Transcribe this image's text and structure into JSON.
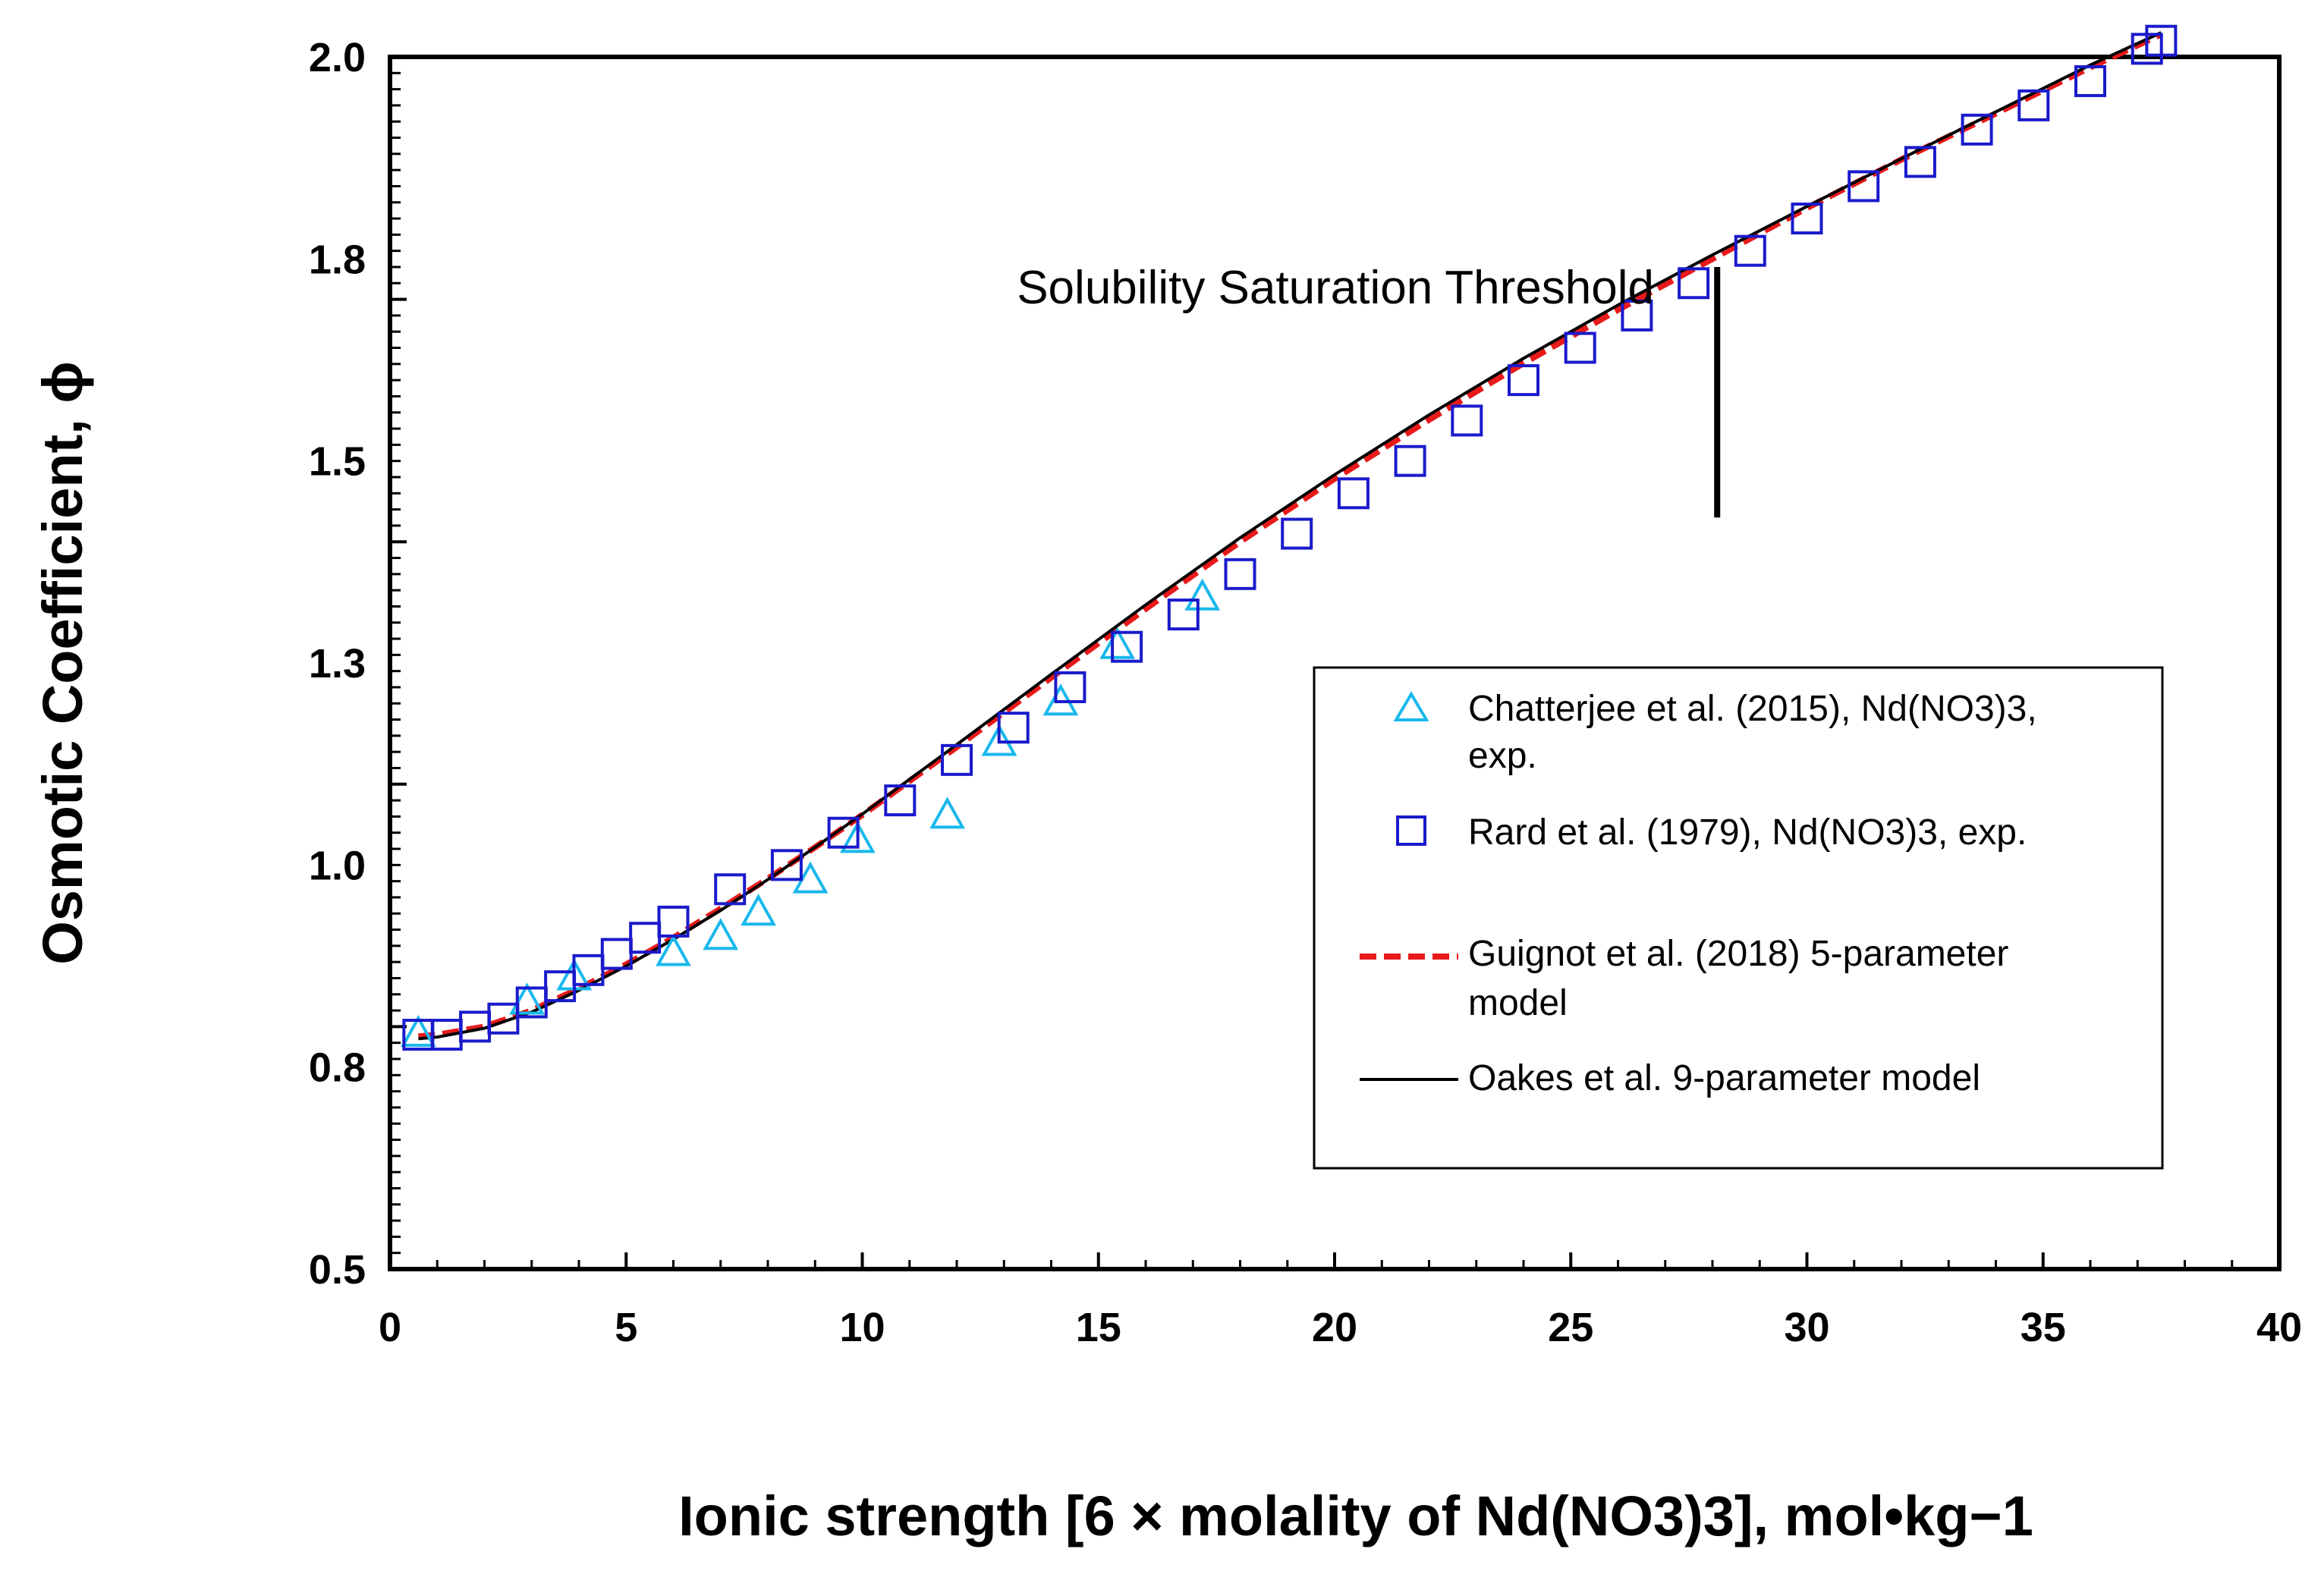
{
  "chart_data": {
    "type": "scatter",
    "title": "",
    "xlabel": "Ionic strength [6 × molality of Nd(NO3)3], mol•kg−1",
    "ylabel": "Osmotic Coefficient, ϕ",
    "xlim": [
      0,
      40
    ],
    "ylim": [
      0.5,
      2.0
    ],
    "x_ticks": [
      "0",
      "5",
      "10",
      "15",
      "20",
      "25",
      "30",
      "35",
      "40"
    ],
    "y_ticks": [
      "0.5",
      "0.8",
      "1.0",
      "1.3",
      "1.5",
      "1.8",
      "2.0"
    ],
    "grid": false,
    "legend_position": "right",
    "annotation": {
      "text": "Solubility Saturation Threshold",
      "x": 28.1,
      "y_range": [
        1.43,
        1.74
      ]
    },
    "series": [
      {
        "name": "Chatterjee et al. (2015),  Nd(NO3)3, exp.",
        "marker": "triangle",
        "color": "#19b8ec",
        "points": [
          [
            0.6,
            0.79
          ],
          [
            2.9,
            0.83
          ],
          [
            3.9,
            0.86
          ],
          [
            6.0,
            0.89
          ],
          [
            7.0,
            0.91
          ],
          [
            7.8,
            0.94
          ],
          [
            8.9,
            0.98
          ],
          [
            9.9,
            1.03
          ],
          [
            11.8,
            1.06
          ],
          [
            12.9,
            1.15
          ],
          [
            14.2,
            1.2
          ],
          [
            15.4,
            1.27
          ],
          [
            17.2,
            1.33
          ]
        ]
      },
      {
        "name": "Rard et al. (1979), Nd(NO3)3, exp.",
        "marker": "square",
        "color": "#1a1acc",
        "points": [
          [
            0.6,
            0.79
          ],
          [
            1.2,
            0.79
          ],
          [
            1.8,
            0.8
          ],
          [
            2.4,
            0.81
          ],
          [
            3.0,
            0.83
          ],
          [
            3.6,
            0.85
          ],
          [
            4.2,
            0.87
          ],
          [
            4.8,
            0.89
          ],
          [
            5.4,
            0.91
          ],
          [
            6.0,
            0.93
          ],
          [
            7.2,
            0.97
          ],
          [
            8.4,
            1.0
          ],
          [
            9.6,
            1.04
          ],
          [
            10.8,
            1.08
          ],
          [
            12.0,
            1.13
          ],
          [
            13.2,
            1.17
          ],
          [
            14.4,
            1.22
          ],
          [
            15.6,
            1.27
          ],
          [
            16.8,
            1.31
          ],
          [
            18.0,
            1.36
          ],
          [
            19.2,
            1.41
          ],
          [
            20.4,
            1.46
          ],
          [
            21.6,
            1.5
          ],
          [
            22.8,
            1.55
          ],
          [
            24.0,
            1.6
          ],
          [
            25.2,
            1.64
          ],
          [
            26.4,
            1.68
          ],
          [
            27.6,
            1.72
          ],
          [
            28.8,
            1.76
          ],
          [
            30.0,
            1.8
          ],
          [
            31.2,
            1.84
          ],
          [
            32.4,
            1.87
          ],
          [
            33.6,
            1.91
          ],
          [
            34.8,
            1.94
          ],
          [
            36.0,
            1.97
          ],
          [
            37.2,
            2.01
          ],
          [
            37.5,
            2.02
          ]
        ]
      },
      {
        "name": "Guignot et al. (2018) 5-parameter model",
        "line_style": "dashed",
        "color": "#e81a1a",
        "points": [
          [
            0.6,
            0.788
          ],
          [
            1,
            0.79
          ],
          [
            2,
            0.8
          ],
          [
            3,
            0.82
          ],
          [
            4,
            0.847
          ],
          [
            5,
            0.877
          ],
          [
            6,
            0.91
          ],
          [
            7,
            0.946
          ],
          [
            8,
            0.983
          ],
          [
            9,
            1.022
          ],
          [
            10,
            1.062
          ],
          [
            12,
            1.146
          ],
          [
            14,
            1.232
          ],
          [
            16,
            1.317
          ],
          [
            18,
            1.4
          ],
          [
            20,
            1.478
          ],
          [
            22,
            1.551
          ],
          [
            24,
            1.621
          ],
          [
            26,
            1.687
          ],
          [
            28,
            1.75
          ],
          [
            30,
            1.813
          ],
          [
            32,
            1.873
          ],
          [
            34,
            1.93
          ],
          [
            36,
            1.987
          ],
          [
            37.5,
            2.028
          ]
        ]
      },
      {
        "name": "Oakes et al. 9-parameter model",
        "line_style": "solid",
        "color": "#000000",
        "points": [
          [
            0.6,
            0.785
          ],
          [
            1,
            0.787
          ],
          [
            2,
            0.798
          ],
          [
            3,
            0.818
          ],
          [
            4,
            0.845
          ],
          [
            5,
            0.875
          ],
          [
            6,
            0.908
          ],
          [
            7,
            0.944
          ],
          [
            8,
            0.982
          ],
          [
            9,
            1.022
          ],
          [
            10,
            1.063
          ],
          [
            12,
            1.149
          ],
          [
            14,
            1.236
          ],
          [
            16,
            1.322
          ],
          [
            18,
            1.405
          ],
          [
            20,
            1.483
          ],
          [
            22,
            1.557
          ],
          [
            24,
            1.627
          ],
          [
            26,
            1.693
          ],
          [
            28,
            1.755
          ],
          [
            30,
            1.815
          ],
          [
            32,
            1.874
          ],
          [
            34,
            1.932
          ],
          [
            36,
            1.99
          ],
          [
            37.5,
            2.03
          ]
        ]
      }
    ]
  },
  "legend": {
    "items": [
      {
        "line1": "Chatterjee et al. (2015),  Nd(NO3)3,",
        "line2": "exp."
      },
      {
        "line1": "Rard et al. (1979), Nd(NO3)3, exp.",
        "line2": ""
      },
      {
        "line1": "Guignot et al. (2018) 5-parameter",
        "line2": "model"
      },
      {
        "line1": "Oakes et al. 9-parameter model",
        "line2": ""
      }
    ]
  }
}
